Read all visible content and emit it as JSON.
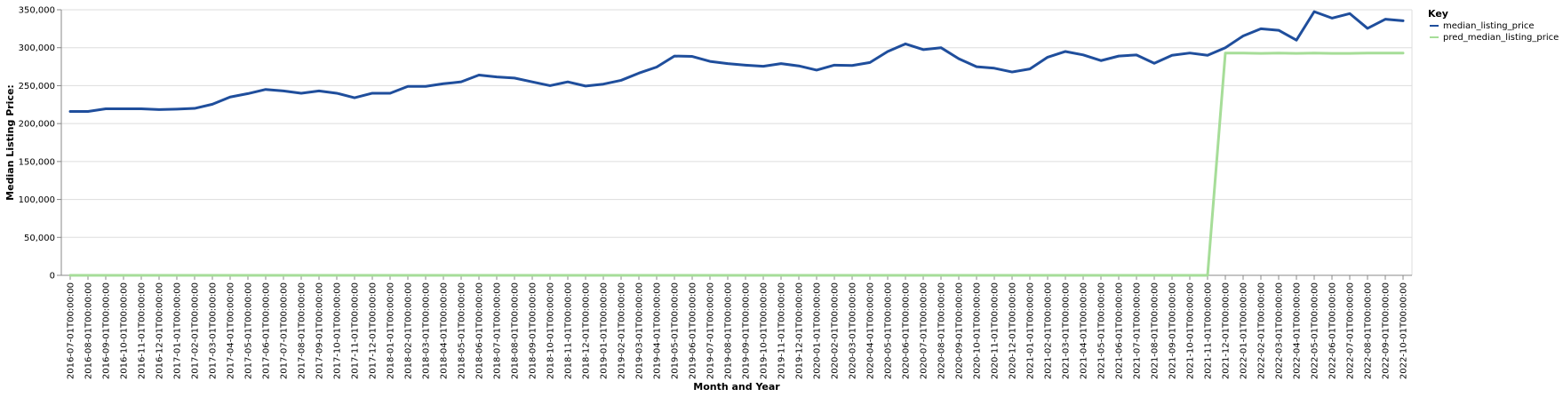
{
  "chart_data": {
    "type": "line",
    "title": "",
    "xlabel": "Month and Year",
    "ylabel": "Median Listing Price:",
    "ylim": [
      0,
      350000
    ],
    "y_ticks": [
      0,
      50000,
      100000,
      150000,
      200000,
      250000,
      300000,
      350000
    ],
    "y_tick_labels": [
      "0",
      "50,000",
      "100,000",
      "150,000",
      "200,000",
      "250,000",
      "300,000",
      "350,000"
    ],
    "grid": true,
    "legend": {
      "title": "Key",
      "placement": "top-right"
    },
    "x": [
      "2016-07-01T00:00:00",
      "2016-08-01T00:00:00",
      "2016-09-01T00:00:00",
      "2016-10-01T00:00:00",
      "2016-11-01T00:00:00",
      "2016-12-01T00:00:00",
      "2017-01-01T00:00:00",
      "2017-02-01T00:00:00",
      "2017-03-01T00:00:00",
      "2017-04-01T00:00:00",
      "2017-05-01T00:00:00",
      "2017-06-01T00:00:00",
      "2017-07-01T00:00:00",
      "2017-08-01T00:00:00",
      "2017-09-01T00:00:00",
      "2017-10-01T00:00:00",
      "2017-11-01T00:00:00",
      "2017-12-01T00:00:00",
      "2018-01-01T00:00:00",
      "2018-02-01T00:00:00",
      "2018-03-01T00:00:00",
      "2018-04-01T00:00:00",
      "2018-05-01T00:00:00",
      "2018-06-01T00:00:00",
      "2018-07-01T00:00:00",
      "2018-08-01T00:00:00",
      "2018-09-01T00:00:00",
      "2018-10-01T00:00:00",
      "2018-11-01T00:00:00",
      "2018-12-01T00:00:00",
      "2019-01-01T00:00:00",
      "2019-02-01T00:00:00",
      "2019-03-01T00:00:00",
      "2019-04-01T00:00:00",
      "2019-05-01T00:00:00",
      "2019-06-01T00:00:00",
      "2019-07-01T00:00:00",
      "2019-08-01T00:00:00",
      "2019-09-01T00:00:00",
      "2019-10-01T00:00:00",
      "2019-11-01T00:00:00",
      "2019-12-01T00:00:00",
      "2020-01-01T00:00:00",
      "2020-02-01T00:00:00",
      "2020-03-01T00:00:00",
      "2020-04-01T00:00:00",
      "2020-05-01T00:00:00",
      "2020-06-01T00:00:00",
      "2020-07-01T00:00:00",
      "2020-08-01T00:00:00",
      "2020-09-01T00:00:00",
      "2020-10-01T00:00:00",
      "2020-11-01T00:00:00",
      "2020-12-01T00:00:00",
      "2021-01-01T00:00:00",
      "2021-02-01T00:00:00",
      "2021-03-01T00:00:00",
      "2021-04-01T00:00:00",
      "2021-05-01T00:00:00",
      "2021-06-01T00:00:00",
      "2021-07-01T00:00:00",
      "2021-08-01T00:00:00",
      "2021-09-01T00:00:00",
      "2021-10-01T00:00:00",
      "2021-11-01T00:00:00",
      "2021-12-01T00:00:00",
      "2022-01-01T00:00:00",
      "2022-02-01T00:00:00",
      "2022-03-01T00:00:00",
      "2022-04-01T00:00:00",
      "2022-05-01T00:00:00",
      "2022-06-01T00:00:00",
      "2022-07-01T00:00:00",
      "2022-08-01T00:00:00",
      "2022-09-01T00:00:00",
      "2022-10-01T00:00:00"
    ],
    "series": [
      {
        "name": "median_listing_price",
        "color": "#1f4e9c",
        "values": [
          216000,
          216000,
          219500,
          219500,
          219500,
          218500,
          219000,
          220000,
          225500,
          235000,
          239500,
          245000,
          243000,
          240000,
          243000,
          240000,
          234000,
          240000,
          240000,
          249000,
          249000,
          252500,
          255000,
          264000,
          261500,
          260000,
          255000,
          250000,
          255000,
          249500,
          252000,
          257000,
          266500,
          274500,
          289000,
          288500,
          282000,
          279000,
          277000,
          275500,
          279000,
          276000,
          270500,
          277000,
          276500,
          280500,
          295000,
          305000,
          297500,
          300000,
          285500,
          275000,
          273000,
          268000,
          272000,
          287500,
          295000,
          290500,
          283000,
          289000,
          290500,
          279500,
          290000,
          293000,
          290000,
          300000,
          315500,
          325000,
          323000,
          310000,
          347500,
          339000,
          345000,
          325500,
          337500,
          335500
        ]
      },
      {
        "name": "pred_median_listing_price",
        "color": "#a6dd98",
        "values": [
          0,
          0,
          0,
          0,
          0,
          0,
          0,
          0,
          0,
          0,
          0,
          0,
          0,
          0,
          0,
          0,
          0,
          0,
          0,
          0,
          0,
          0,
          0,
          0,
          0,
          0,
          0,
          0,
          0,
          0,
          0,
          0,
          0,
          0,
          0,
          0,
          0,
          0,
          0,
          0,
          0,
          0,
          0,
          0,
          0,
          0,
          0,
          0,
          0,
          0,
          0,
          0,
          0,
          0,
          0,
          0,
          0,
          0,
          0,
          0,
          0,
          0,
          0,
          0,
          0,
          293000,
          293000,
          292500,
          293000,
          292500,
          293000,
          292500,
          292500,
          293000,
          293000,
          293000
        ]
      }
    ]
  }
}
